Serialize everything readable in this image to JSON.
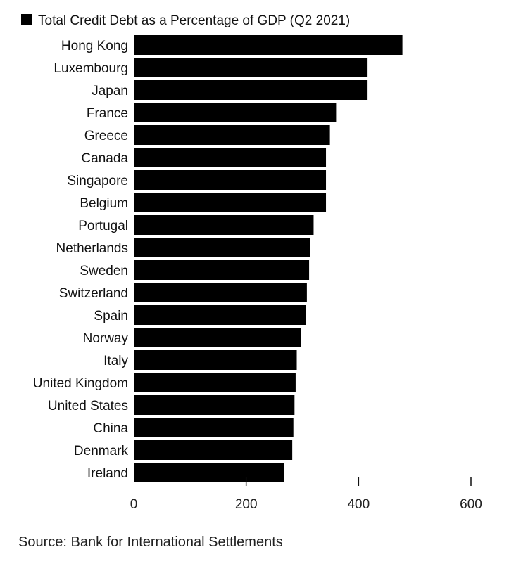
{
  "chart_data": {
    "type": "bar",
    "orientation": "horizontal",
    "legend": {
      "label": "Total Credit Debt as a Percentage of GDP (Q2 2021)",
      "color": "#000000",
      "placement": "top-left"
    },
    "categories": [
      "Hong Kong",
      "Luxembourg",
      "Japan",
      "France",
      "Greece",
      "Canada",
      "Singapore",
      "Belgium",
      "Portugal",
      "Netherlands",
      "Sweden",
      "Switzerland",
      "Spain",
      "Norway",
      "Italy",
      "United Kingdom",
      "United States",
      "China",
      "Denmark",
      "Ireland"
    ],
    "values": [
      478,
      416,
      416,
      360,
      349,
      342,
      342,
      342,
      320,
      314,
      312,
      308,
      306,
      297,
      290,
      288,
      286,
      284,
      282,
      267
    ],
    "xlim": [
      0,
      600
    ],
    "xticks": [
      0,
      200,
      400,
      600
    ],
    "grid": false,
    "bar_color": "#000000"
  },
  "source": "Source: Bank for International Settlements"
}
